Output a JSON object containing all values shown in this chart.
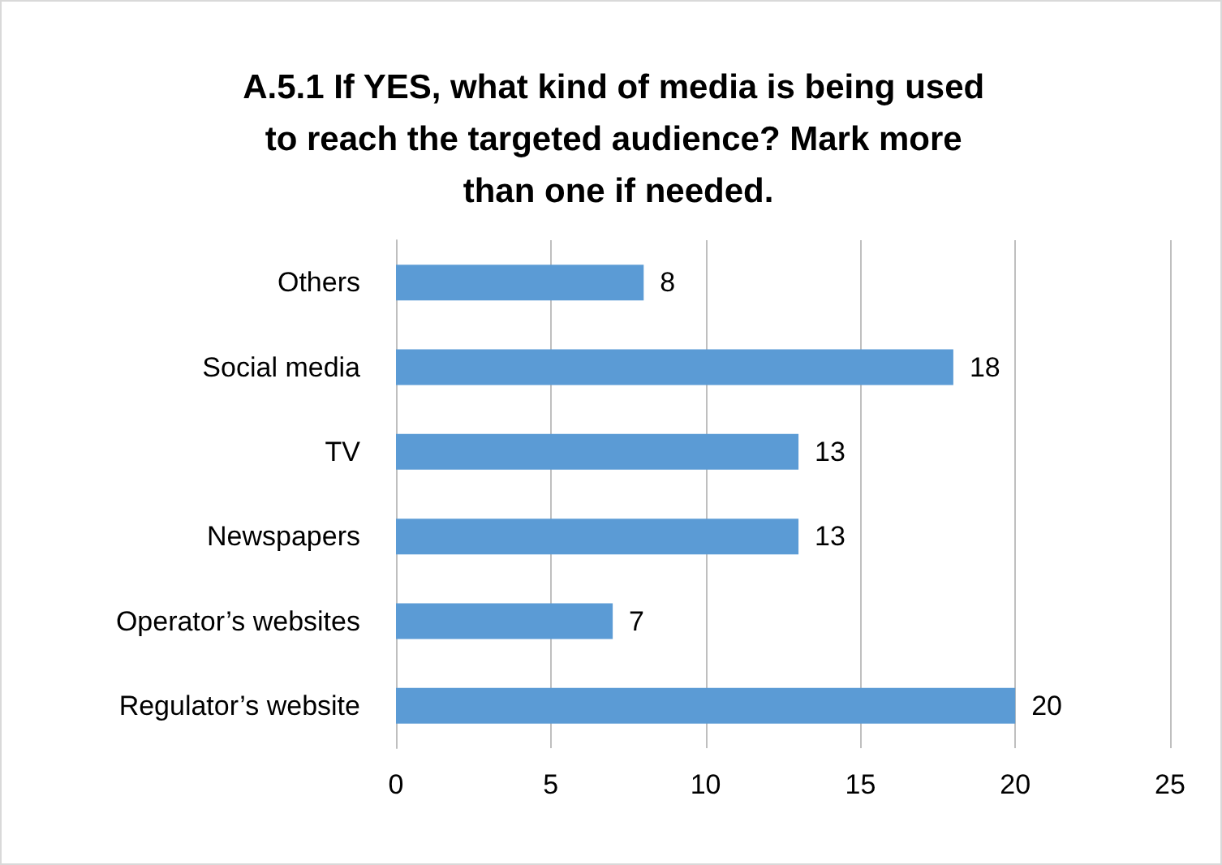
{
  "chart_data": {
    "type": "bar",
    "orientation": "horizontal",
    "title": "A.5.1 If YES, what kind of media is being used to reach the targeted audience? Mark more than one if needed.",
    "categories": [
      "Others",
      "Social media",
      "TV",
      "Newspapers",
      "Operator’s websites",
      "Regulator’s website"
    ],
    "values": [
      8,
      18,
      13,
      13,
      7,
      20
    ],
    "color": "#5b9bd5",
    "xlim": [
      0,
      25
    ],
    "xticks": [
      0,
      5,
      10,
      15,
      20,
      25
    ],
    "grid": "x",
    "data_labels": true
  }
}
